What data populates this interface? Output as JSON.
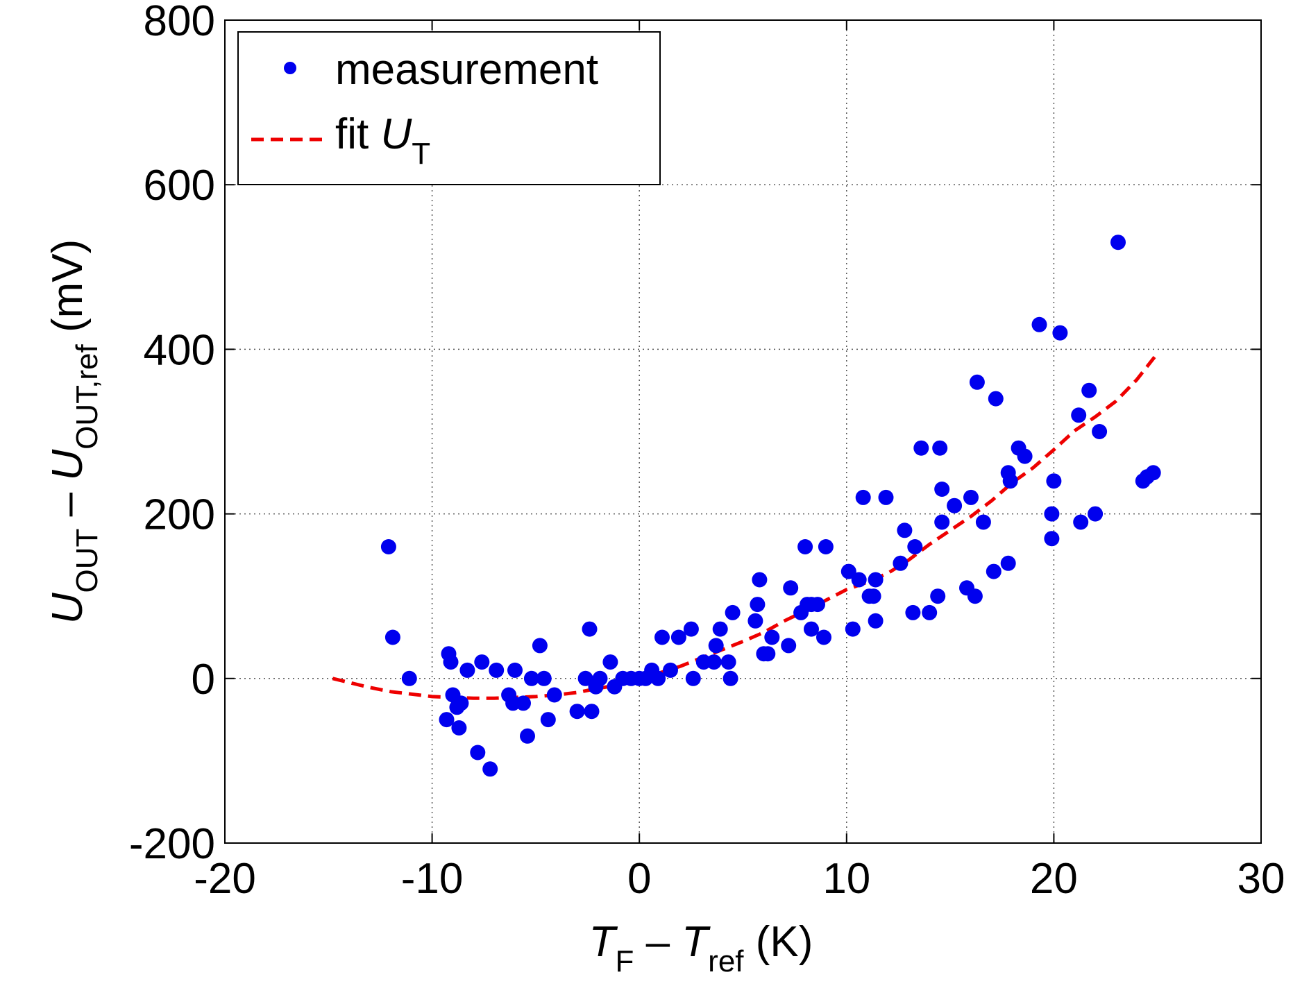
{
  "chart_data": {
    "type": "scatter",
    "xlim": [
      -20,
      30
    ],
    "ylim": [
      -200,
      800
    ],
    "x_ticks": [
      -20,
      -10,
      0,
      10,
      20,
      30
    ],
    "y_ticks": [
      -200,
      0,
      200,
      400,
      600,
      800
    ],
    "x_tick_labels": [
      "-20",
      "-10",
      "0",
      "10",
      "20",
      "30"
    ],
    "y_tick_labels": [
      "-200",
      "0",
      "200",
      "400",
      "600",
      "800"
    ],
    "grid": true,
    "legend_position": "top-left",
    "xlabel": {
      "t1": "T",
      "s1": "F",
      "minus": " – ",
      "t2": "T",
      "s2": "ref",
      "unit": " (K)"
    },
    "ylabel": {
      "u1": "U",
      "s1": "OUT",
      "minus": " – ",
      "u2": "U",
      "s2": "OUT,ref",
      "unit": " (mV)"
    },
    "colors": {
      "measurement": "#0000ee",
      "fit": "#ee0000"
    },
    "series": [
      {
        "name": "measurement",
        "label": "measurement",
        "style": "dots",
        "points": [
          [
            -12.1,
            160
          ],
          [
            -11.9,
            50
          ],
          [
            -11.1,
            0
          ],
          [
            -9.3,
            -50
          ],
          [
            -9.2,
            30
          ],
          [
            -9.1,
            20
          ],
          [
            -9.0,
            -20
          ],
          [
            -8.8,
            -35
          ],
          [
            -8.7,
            -60
          ],
          [
            -8.6,
            -30
          ],
          [
            -8.3,
            10
          ],
          [
            -7.8,
            -90
          ],
          [
            -7.6,
            20
          ],
          [
            -7.2,
            -110
          ],
          [
            -6.9,
            10
          ],
          [
            -6.3,
            -20
          ],
          [
            -6.1,
            -30
          ],
          [
            -6.0,
            10
          ],
          [
            -5.6,
            -30
          ],
          [
            -5.4,
            -70
          ],
          [
            -5.2,
            0
          ],
          [
            -4.8,
            40
          ],
          [
            -4.6,
            0
          ],
          [
            -4.4,
            -50
          ],
          [
            -4.1,
            -20
          ],
          [
            -3.0,
            -40
          ],
          [
            -2.6,
            0
          ],
          [
            -2.4,
            60
          ],
          [
            -2.3,
            -40
          ],
          [
            -2.1,
            -10
          ],
          [
            -1.9,
            0
          ],
          [
            -1.4,
            20
          ],
          [
            -1.2,
            -10
          ],
          [
            -0.8,
            0
          ],
          [
            -0.4,
            0
          ],
          [
            0.0,
            0
          ],
          [
            0.3,
            0
          ],
          [
            0.6,
            10
          ],
          [
            0.9,
            0
          ],
          [
            1.1,
            50
          ],
          [
            1.5,
            10
          ],
          [
            1.9,
            50
          ],
          [
            2.5,
            60
          ],
          [
            2.6,
            0
          ],
          [
            3.1,
            20
          ],
          [
            3.6,
            20
          ],
          [
            3.7,
            40
          ],
          [
            3.9,
            60
          ],
          [
            4.3,
            20
          ],
          [
            4.4,
            0
          ],
          [
            4.5,
            80
          ],
          [
            5.6,
            70
          ],
          [
            5.7,
            90
          ],
          [
            5.8,
            120
          ],
          [
            6.0,
            30
          ],
          [
            6.2,
            30
          ],
          [
            6.4,
            50
          ],
          [
            7.2,
            40
          ],
          [
            7.3,
            110
          ],
          [
            7.8,
            80
          ],
          [
            8.0,
            160
          ],
          [
            8.1,
            90
          ],
          [
            8.3,
            90
          ],
          [
            8.3,
            60
          ],
          [
            8.6,
            90
          ],
          [
            8.9,
            50
          ],
          [
            9.0,
            160
          ],
          [
            10.1,
            130
          ],
          [
            10.3,
            60
          ],
          [
            10.6,
            120
          ],
          [
            10.8,
            220
          ],
          [
            11.1,
            100
          ],
          [
            11.3,
            100
          ],
          [
            11.4,
            120
          ],
          [
            11.4,
            70
          ],
          [
            11.9,
            220
          ],
          [
            12.6,
            140
          ],
          [
            12.8,
            180
          ],
          [
            13.2,
            80
          ],
          [
            13.3,
            160
          ],
          [
            13.6,
            280
          ],
          [
            14.0,
            80
          ],
          [
            14.4,
            100
          ],
          [
            14.5,
            280
          ],
          [
            14.6,
            190
          ],
          [
            14.6,
            230
          ],
          [
            15.2,
            210
          ],
          [
            15.8,
            110
          ],
          [
            16.0,
            220
          ],
          [
            16.2,
            100
          ],
          [
            16.3,
            360
          ],
          [
            16.6,
            190
          ],
          [
            17.1,
            130
          ],
          [
            17.2,
            340
          ],
          [
            17.8,
            140
          ],
          [
            17.8,
            250
          ],
          [
            17.9,
            240
          ],
          [
            18.3,
            280
          ],
          [
            18.6,
            270
          ],
          [
            19.3,
            430
          ],
          [
            19.9,
            200
          ],
          [
            20.0,
            240
          ],
          [
            19.9,
            170
          ],
          [
            20.3,
            420
          ],
          [
            21.2,
            320
          ],
          [
            21.3,
            190
          ],
          [
            21.7,
            350
          ],
          [
            22.0,
            200
          ],
          [
            22.2,
            300
          ],
          [
            23.1,
            530
          ],
          [
            24.3,
            240
          ],
          [
            24.5,
            245
          ],
          [
            24.8,
            250
          ]
        ]
      },
      {
        "name": "fit",
        "label": "fit U",
        "label_main": "fit ",
        "label_var": "U",
        "label_sub": "T",
        "style": "dashed-line",
        "points": [
          [
            -14.8,
            0
          ],
          [
            -14,
            -5
          ],
          [
            -13,
            -11
          ],
          [
            -12,
            -16
          ],
          [
            -11,
            -19
          ],
          [
            -10,
            -22
          ],
          [
            -9,
            -23
          ],
          [
            -8,
            -24
          ],
          [
            -7,
            -24
          ],
          [
            -6,
            -23
          ],
          [
            -5,
            -22
          ],
          [
            -4,
            -20
          ],
          [
            -3,
            -17
          ],
          [
            -2,
            -12
          ],
          [
            -1,
            -8
          ],
          [
            0,
            0
          ],
          [
            1,
            7
          ],
          [
            2,
            15
          ],
          [
            3,
            25
          ],
          [
            4,
            35
          ],
          [
            5,
            45
          ],
          [
            6,
            56
          ],
          [
            7,
            70
          ],
          [
            8,
            82
          ],
          [
            9,
            95
          ],
          [
            10,
            108
          ],
          [
            11,
            117
          ],
          [
            12,
            128
          ],
          [
            13,
            144
          ],
          [
            14,
            163
          ],
          [
            15,
            180
          ],
          [
            16,
            197
          ],
          [
            17,
            216
          ],
          [
            18,
            238
          ],
          [
            19,
            256
          ],
          [
            20,
            278
          ],
          [
            21,
            301
          ],
          [
            22,
            318
          ],
          [
            23,
            337
          ],
          [
            24,
            363
          ],
          [
            25,
            395
          ]
        ]
      }
    ]
  }
}
